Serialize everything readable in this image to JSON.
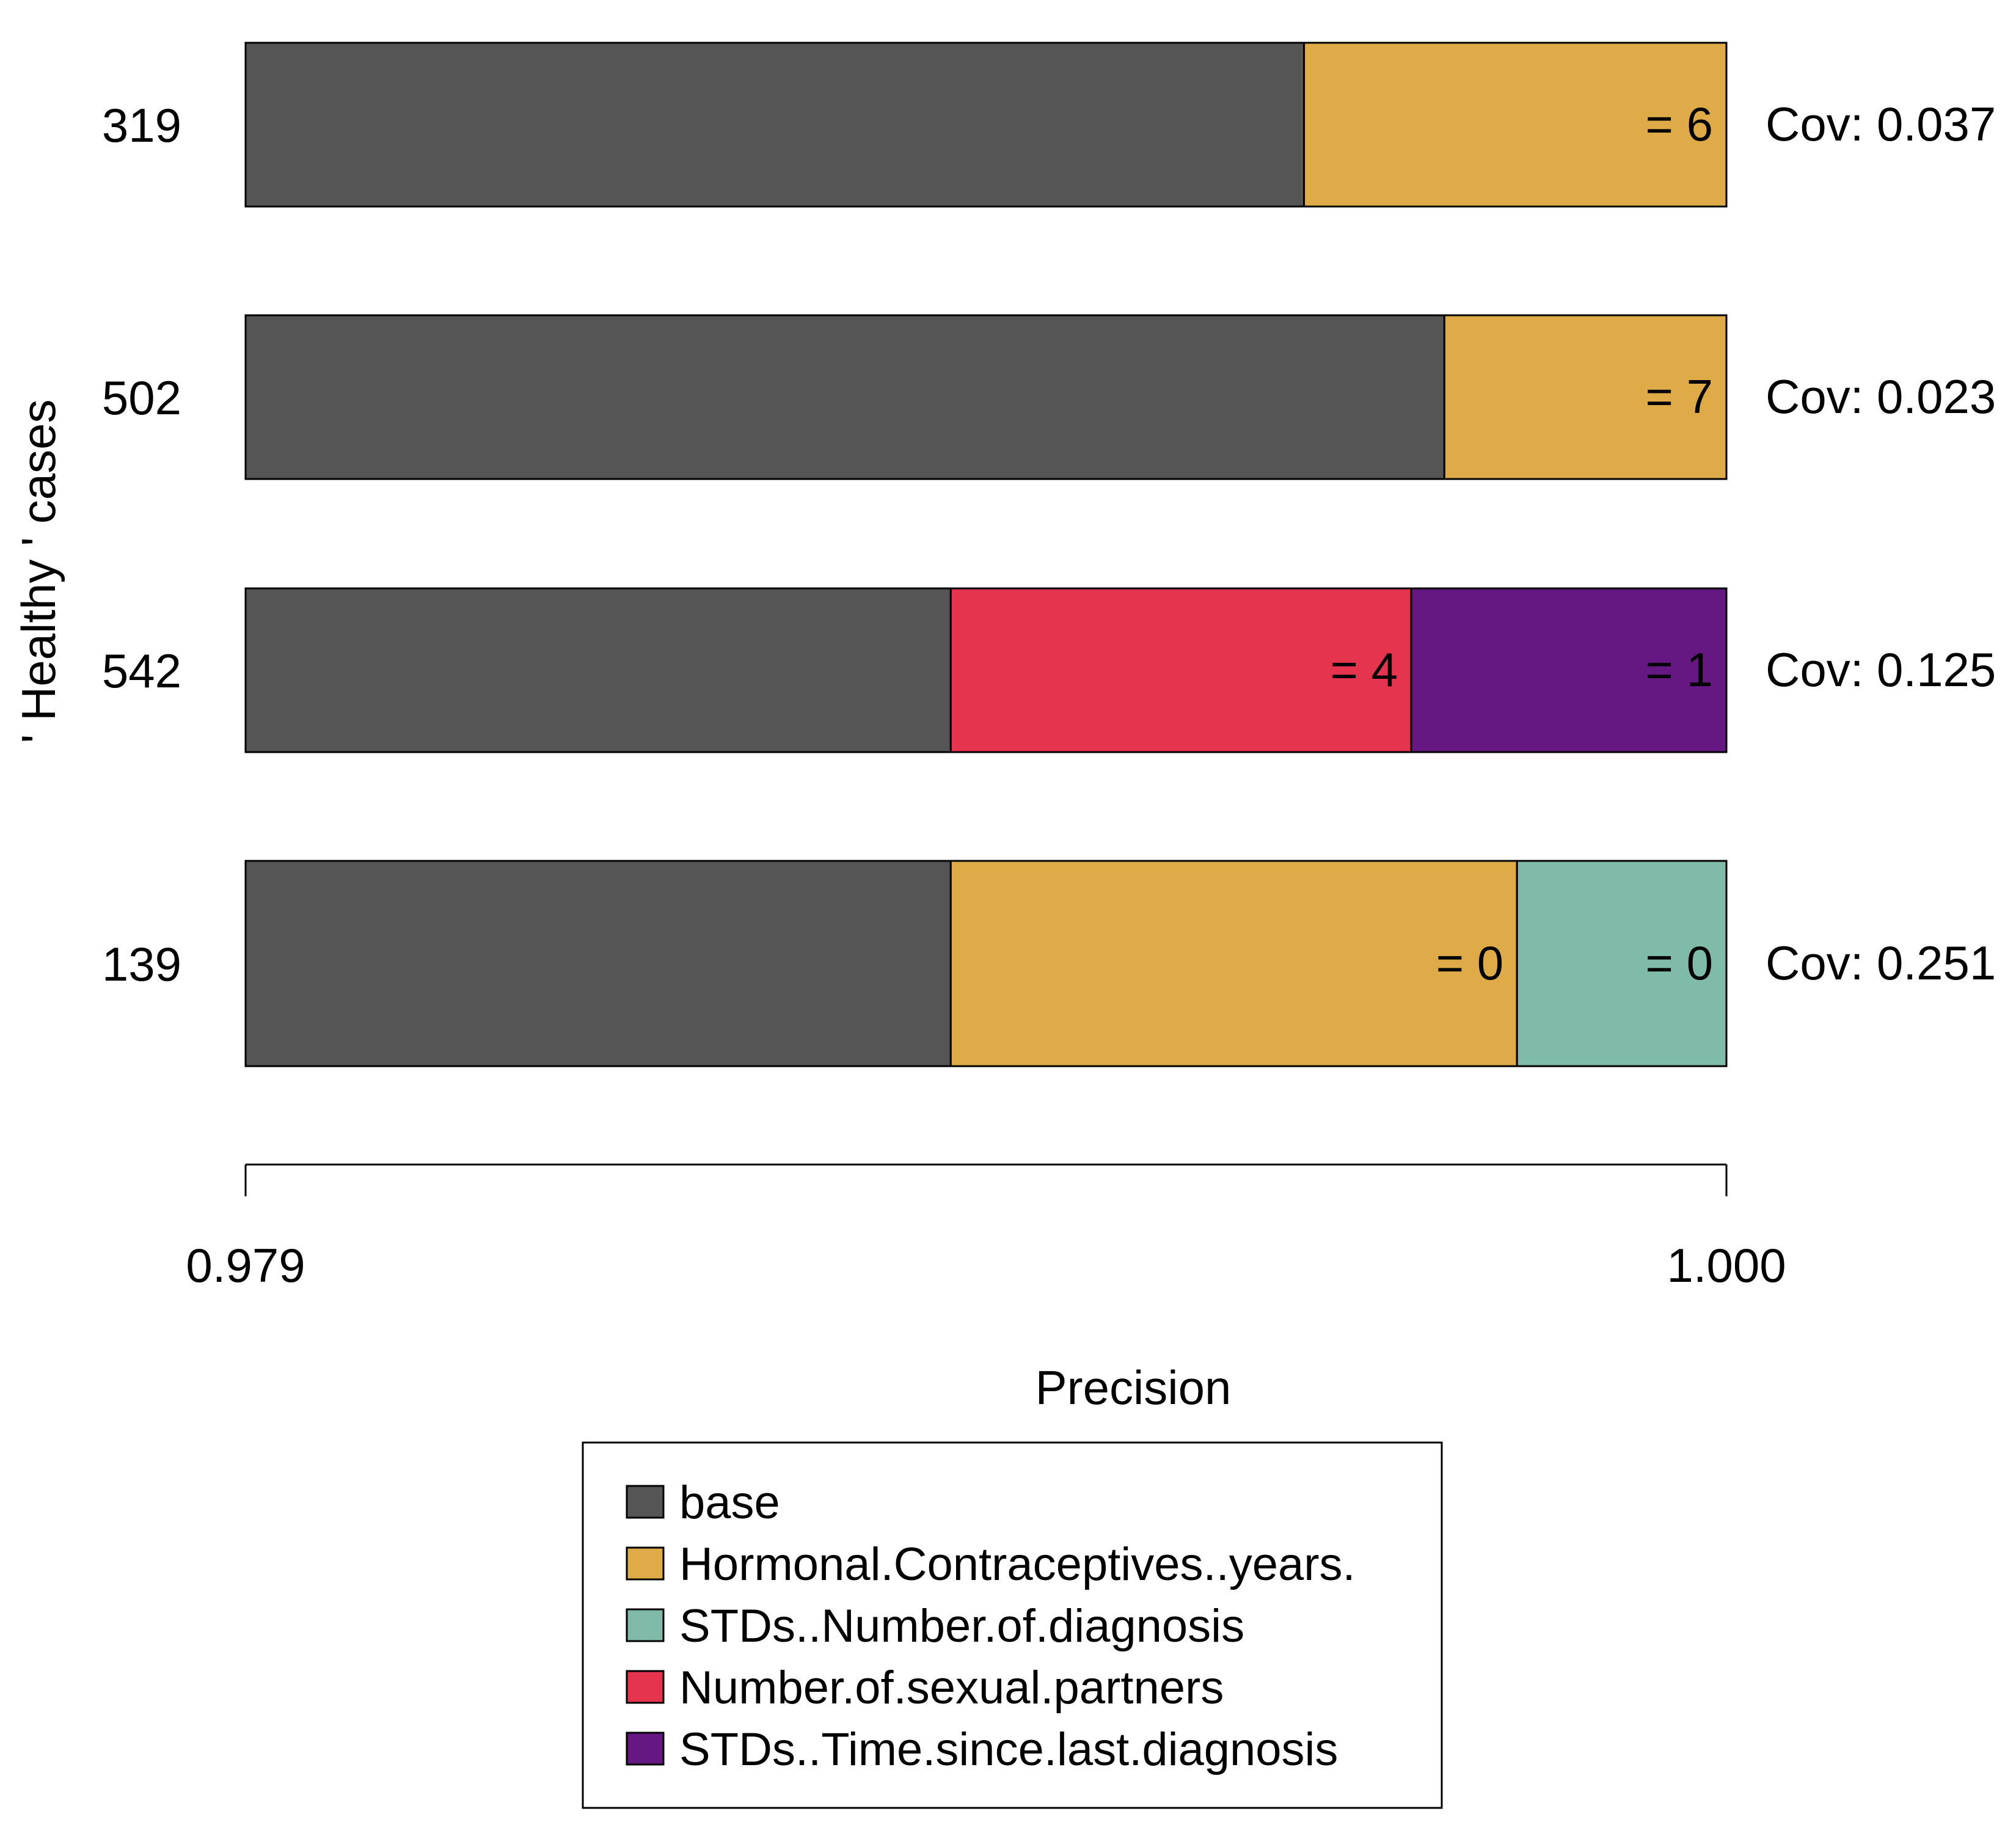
{
  "chart_data": {
    "type": "bar",
    "orientation": "horizontal",
    "stacked": true,
    "title": "",
    "xlabel": "Precision",
    "ylabel": "' Healthy ' cases",
    "xlim": [
      0.979,
      1.0
    ],
    "x_tick_labels": [
      "0.979",
      "1.000"
    ],
    "grid": false,
    "legend_position": "bottom",
    "colors": {
      "base": "#555555",
      "Hormonal.Contraceptives..years.": "#DEAB48",
      "STDs..Number.of.diagnosis": "#7FBBA8",
      "Number.of.sexual.partners": "#E5344E",
      "STDs..Time.since.last.diagnosis": "#661882"
    },
    "legend": [
      {
        "label": "base",
        "color": "#555555"
      },
      {
        "label": "Hormonal.Contraceptives..years.",
        "color": "#DEAB48"
      },
      {
        "label": "STDs..Number.of.diagnosis",
        "color": "#7FBBA8"
      },
      {
        "label": "Number.of.sexual.partners",
        "color": "#E5344E"
      },
      {
        "label": "STDs..Time.since.last.diagnosis",
        "color": "#661882"
      }
    ],
    "cases": [
      {
        "case": "319",
        "coverage": "Cov: 0.037",
        "segments": [
          {
            "feature": "base",
            "start": 0.979,
            "end": 0.99401,
            "label": ""
          },
          {
            "feature": "Hormonal.Contraceptives..years.",
            "start": 0.99401,
            "end": 1.0,
            "label": "= 6"
          }
        ]
      },
      {
        "case": "502",
        "coverage": "Cov: 0.023",
        "segments": [
          {
            "feature": "base",
            "start": 0.979,
            "end": 0.996,
            "label": ""
          },
          {
            "feature": "Hormonal.Contraceptives..years.",
            "start": 0.996,
            "end": 1.0,
            "label": "= 7"
          }
        ]
      },
      {
        "case": "542",
        "coverage": "Cov: 0.125",
        "segments": [
          {
            "feature": "base",
            "start": 0.979,
            "end": 0.989,
            "label": ""
          },
          {
            "feature": "Number.of.sexual.partners",
            "start": 0.989,
            "end": 0.99553,
            "label": "= 4"
          },
          {
            "feature": "STDs..Time.since.last.diagnosis",
            "start": 0.99553,
            "end": 1.0,
            "label": "= 1"
          }
        ]
      },
      {
        "case": "139",
        "coverage": "Cov: 0.251",
        "segments": [
          {
            "feature": "base",
            "start": 0.979,
            "end": 0.989,
            "label": ""
          },
          {
            "feature": "Hormonal.Contraceptives..years.",
            "start": 0.989,
            "end": 0.99703,
            "label": "= 0"
          },
          {
            "feature": "STDs..Number.of.diagnosis",
            "start": 0.99703,
            "end": 1.0,
            "label": "= 0"
          }
        ]
      }
    ]
  }
}
